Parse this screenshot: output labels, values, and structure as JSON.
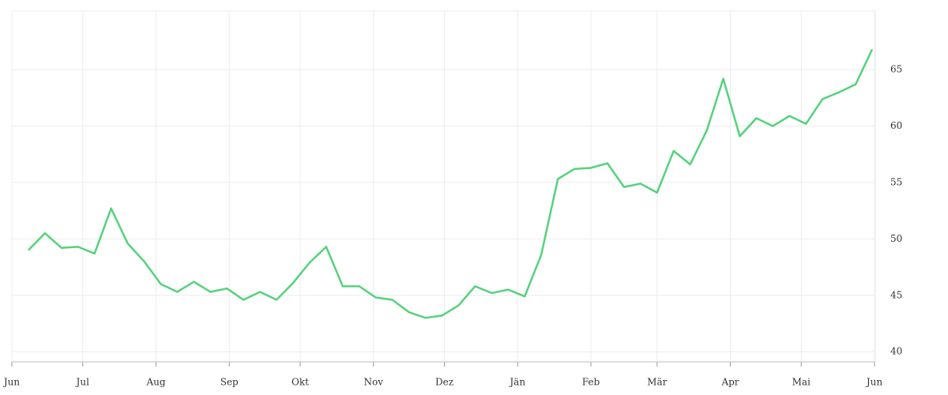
{
  "chart_data": {
    "type": "line",
    "x": [
      7,
      14,
      21,
      28,
      35,
      42,
      49,
      56,
      63,
      70,
      77,
      84,
      91,
      98,
      105,
      112,
      119,
      126,
      133,
      140,
      147,
      154,
      161,
      168,
      175,
      182,
      189,
      196,
      203,
      210,
      217,
      224,
      231,
      238,
      245,
      252,
      259,
      266,
      273,
      280,
      287,
      294,
      301,
      308,
      315,
      322,
      329,
      336,
      343,
      350,
      357,
      364
    ],
    "series": [
      {
        "color": "#54d27c",
        "values": [
          49.0,
          50.5,
          49.2,
          49.3,
          48.7,
          52.7,
          49.6,
          48.0,
          46.0,
          45.3,
          46.2,
          45.3,
          45.6,
          44.6,
          45.3,
          44.6,
          46.1,
          47.9,
          49.3,
          45.8,
          45.8,
          44.8,
          44.6,
          43.5,
          43.0,
          43.2,
          44.1,
          45.8,
          45.2,
          45.5,
          44.9,
          48.6,
          55.3,
          56.2,
          56.3,
          56.7,
          54.6,
          54.9,
          54.1,
          57.8,
          56.6,
          59.6,
          64.2,
          59.1,
          60.7,
          60.0,
          60.9,
          60.2,
          62.4,
          63.0,
          63.7,
          66.8
        ]
      }
    ],
    "xlim": [
      0,
      365
    ],
    "xticks": [
      {
        "value": 0,
        "label": "Jun"
      },
      {
        "value": 30,
        "label": "Jul"
      },
      {
        "value": 61,
        "label": "Aug"
      },
      {
        "value": 92,
        "label": "Sep"
      },
      {
        "value": 122,
        "label": "Okt"
      },
      {
        "value": 153,
        "label": "Nov"
      },
      {
        "value": 183,
        "label": "Dez"
      },
      {
        "value": 214,
        "label": "Jän"
      },
      {
        "value": 245,
        "label": "Feb"
      },
      {
        "value": 273,
        "label": "Mär"
      },
      {
        "value": 304,
        "label": "Apr"
      },
      {
        "value": 334,
        "label": "Mai"
      },
      {
        "value": 365,
        "label": "Jun"
      }
    ],
    "ylim": [
      39.1,
      70.2
    ],
    "yticks": [
      40,
      45,
      50,
      55,
      60,
      65
    ],
    "grid": true
  }
}
